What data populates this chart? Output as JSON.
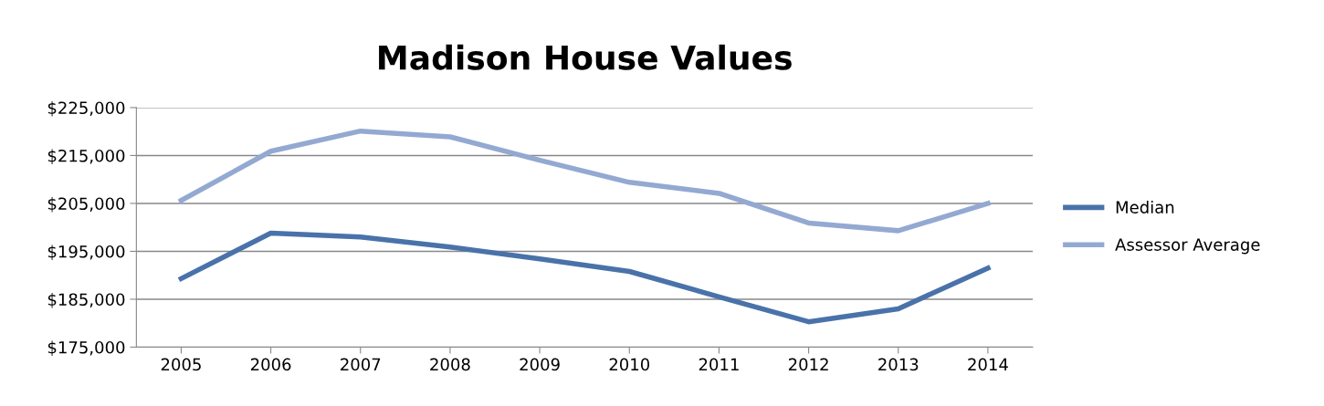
{
  "chart_data": {
    "type": "line",
    "title": "Madison House Values",
    "categories": [
      "2005",
      "2006",
      "2007",
      "2008",
      "2009",
      "2010",
      "2011",
      "2012",
      "2013",
      "2014"
    ],
    "series": [
      {
        "name": "Median",
        "color": "#4a72aa",
        "values": [
          189300,
          198800,
          198000,
          195900,
          193400,
          190800,
          185500,
          180300,
          183000,
          191500
        ]
      },
      {
        "name": "Assessor Average",
        "color": "#93a9d2",
        "values": [
          205600,
          215900,
          220100,
          218900,
          214000,
          209400,
          207100,
          200900,
          199300,
          205000
        ]
      }
    ],
    "ylim": [
      175000,
      225000
    ],
    "yticks": [
      {
        "value": 175000,
        "label": "$175,000"
      },
      {
        "value": 185000,
        "label": "$185,000"
      },
      {
        "value": 195000,
        "label": "$195,000"
      },
      {
        "value": 205000,
        "label": "$205,000"
      },
      {
        "value": 215000,
        "label": "$215,000"
      },
      {
        "value": 225000,
        "label": "$225,000"
      }
    ],
    "grid": "y",
    "legend": "right",
    "marker": "none",
    "line_style": "solid"
  }
}
